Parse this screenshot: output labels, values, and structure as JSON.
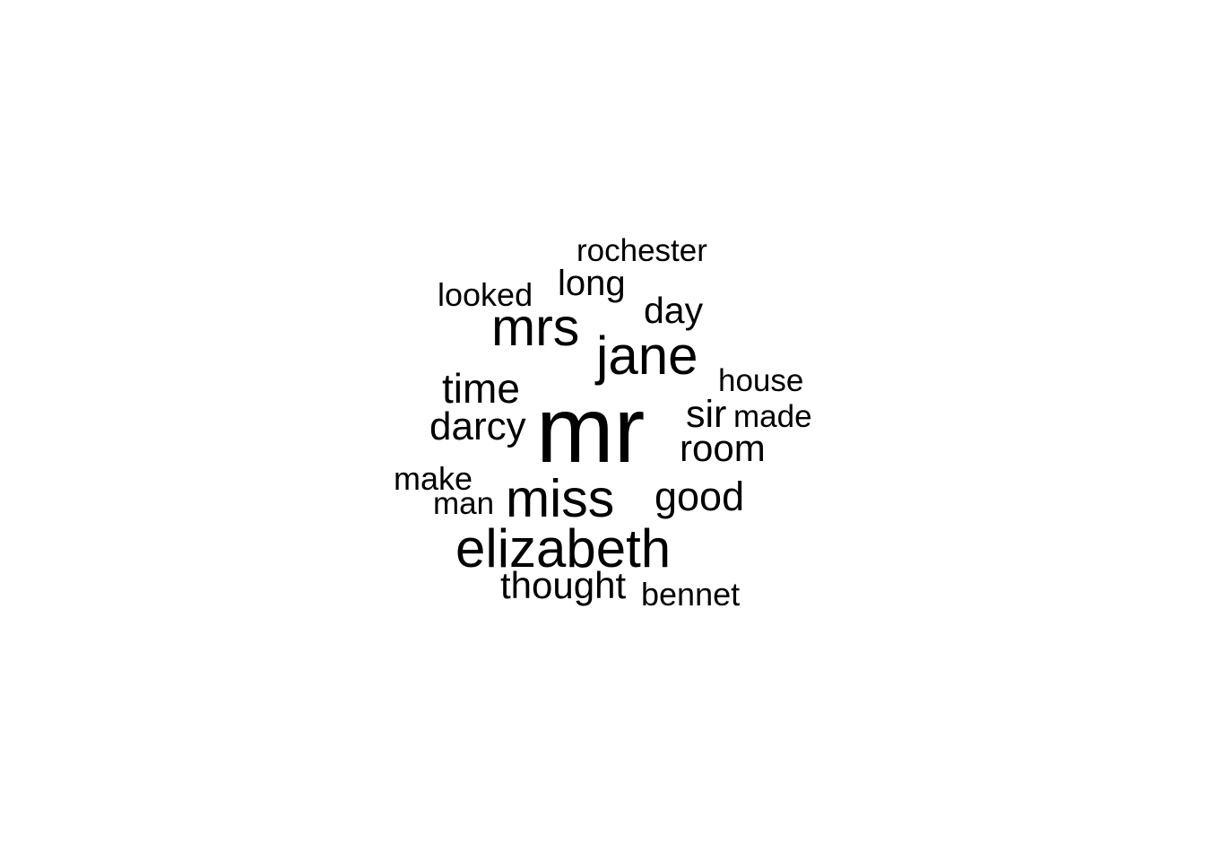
{
  "text_color": "#000000",
  "background_color": "#ffffff",
  "words": [
    {
      "text": "mr"
    },
    {
      "text": "elizabeth"
    },
    {
      "text": "jane"
    },
    {
      "text": "miss"
    },
    {
      "text": "mrs"
    },
    {
      "text": "time"
    },
    {
      "text": "darcy"
    },
    {
      "text": "good"
    },
    {
      "text": "room"
    },
    {
      "text": "sir"
    },
    {
      "text": "long"
    },
    {
      "text": "day"
    },
    {
      "text": "thought"
    },
    {
      "text": "rochester"
    },
    {
      "text": "looked"
    },
    {
      "text": "house"
    },
    {
      "text": "made"
    },
    {
      "text": "make"
    },
    {
      "text": "man"
    },
    {
      "text": "bennet"
    }
  ]
}
